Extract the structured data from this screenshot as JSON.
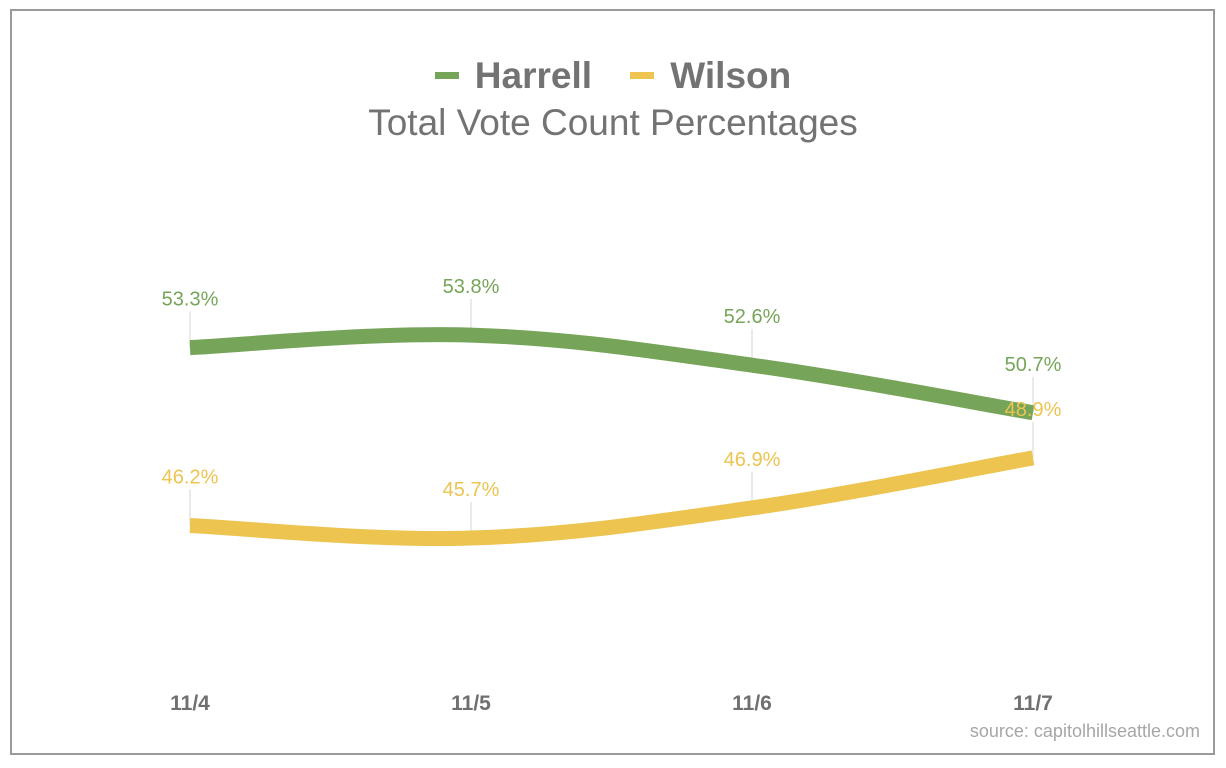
{
  "chart_data": {
    "type": "line",
    "title": "Total Vote Count Percentages",
    "xlabel": "",
    "ylabel": "",
    "categories": [
      "11/4",
      "11/5",
      "11/6",
      "11/7"
    ],
    "ylim": [
      40,
      60
    ],
    "grid": false,
    "legend_position": "top-center",
    "series": [
      {
        "name": "Harrell",
        "color": "#76a55a",
        "values": [
          53.3,
          53.8,
          52.6,
          50.7
        ],
        "labels": [
          "53.3%",
          "53.8%",
          "52.6%",
          "50.7%"
        ]
      },
      {
        "name": "Wilson",
        "color": "#ecc44f",
        "values": [
          46.2,
          45.7,
          46.9,
          48.9
        ],
        "labels": [
          "46.2%",
          "45.7%",
          "46.9%",
          "48.9%"
        ]
      }
    ],
    "source": "source: capitolhillseattle.com"
  }
}
